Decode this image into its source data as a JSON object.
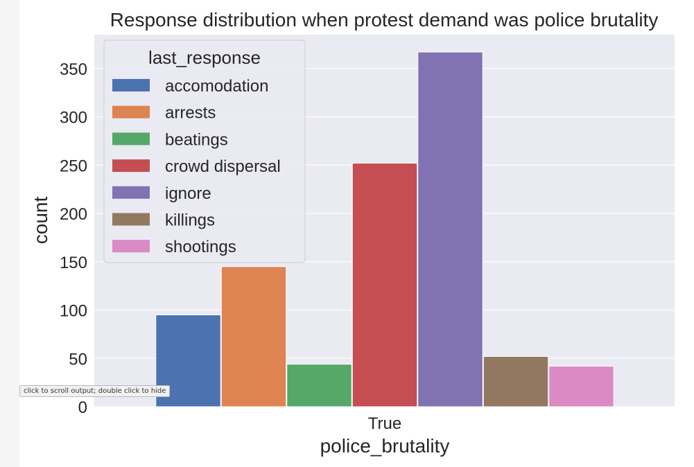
{
  "tooltip": "click to scroll output; double click to hide",
  "chart_data": {
    "type": "bar",
    "title": "Response distribution when protest demand was police brutality",
    "xlabel": "police_brutality",
    "ylabel": "count",
    "categories": [
      "True"
    ],
    "ylim": [
      0,
      385
    ],
    "yticks": [
      0,
      50,
      100,
      150,
      200,
      250,
      300,
      350
    ],
    "grid": true,
    "legend_title": "last_response",
    "legend_position": "upper-left",
    "series": [
      {
        "name": "accomodation",
        "color": "#4c72b0",
        "values": [
          95
        ]
      },
      {
        "name": "arrests",
        "color": "#dd8452",
        "values": [
          145
        ]
      },
      {
        "name": "beatings",
        "color": "#55a868",
        "values": [
          44
        ]
      },
      {
        "name": "crowd dispersal",
        "color": "#c44e52",
        "values": [
          252
        ]
      },
      {
        "name": "ignore",
        "color": "#8172b3",
        "values": [
          367
        ]
      },
      {
        "name": "killings",
        "color": "#937860",
        "values": [
          52
        ]
      },
      {
        "name": "shootings",
        "color": "#da8bc3",
        "values": [
          42
        ]
      }
    ],
    "colors": {
      "plot_bg": "#eaeaf2",
      "grid": "#ffffff",
      "text": "#262626"
    }
  }
}
